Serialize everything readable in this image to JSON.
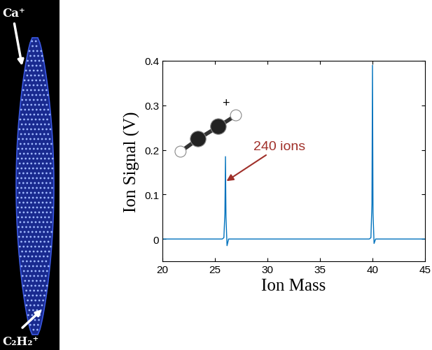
{
  "chart_data": {
    "type": "line",
    "xlabel": "Ion Mass",
    "ylabel": "Ion Signal (V)",
    "x": [
      20,
      25.7,
      25.85,
      25.95,
      26.0,
      26.05,
      26.15,
      26.3,
      30,
      35,
      39.7,
      39.85,
      39.95,
      40.0,
      40.05,
      40.15,
      40.3,
      45
    ],
    "values": [
      0,
      0,
      0.003,
      0.06,
      0.185,
      0.05,
      -0.015,
      0,
      0,
      0,
      0,
      0.003,
      0.08,
      0.39,
      0.06,
      -0.01,
      0,
      0
    ],
    "color": "#0072bd",
    "xlim": [
      20,
      45
    ],
    "ylim": [
      -0.05,
      0.4
    ],
    "xticks": [
      20,
      25,
      30,
      35,
      40,
      45
    ],
    "yticks": [
      0,
      0.1,
      0.2,
      0.3,
      0.4
    ],
    "annotations": [
      {
        "text": "240 ions",
        "x": 26.1,
        "y": 0.13,
        "color": "#a0302a"
      }
    ],
    "ion_charge_label": "+",
    "image_labels": {
      "top": "Ca⁺",
      "bottom": "C₂H₂⁺"
    }
  }
}
